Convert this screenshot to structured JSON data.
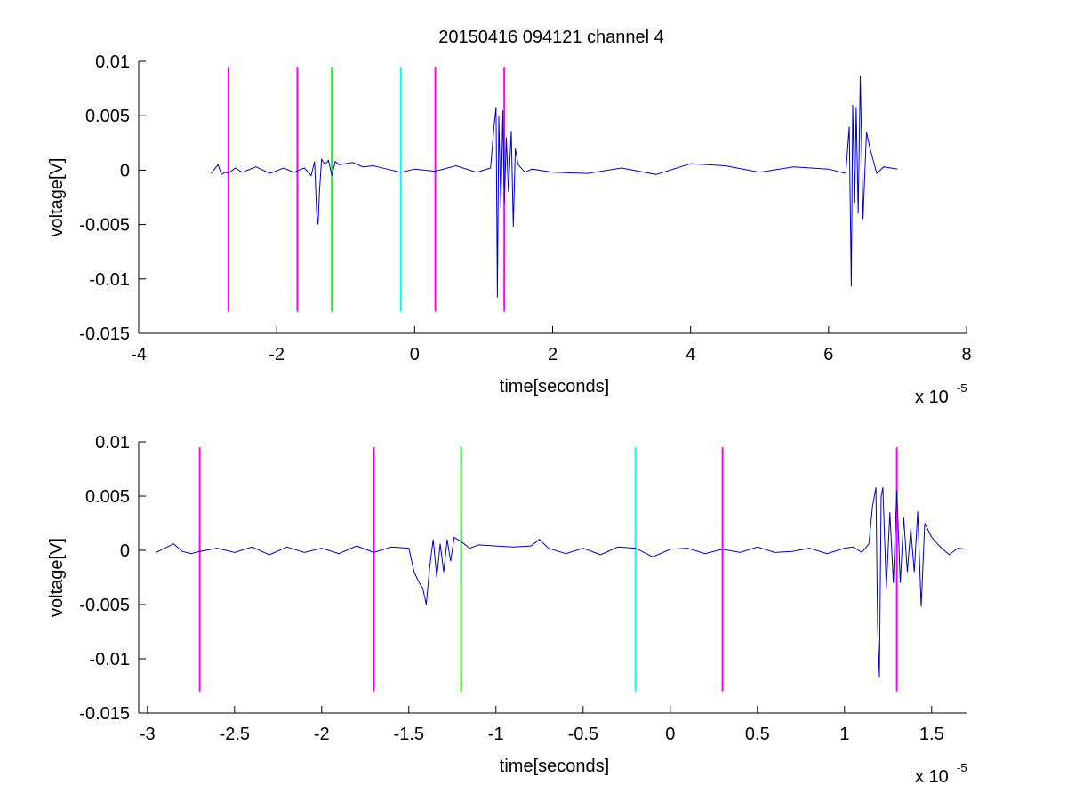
{
  "figure": {
    "title": "20150416 094121 channel 4"
  },
  "chart_data": [
    {
      "type": "line",
      "name": "full-view",
      "title": "20150416 094121 channel 4",
      "xlabel": "time[seconds]",
      "ylabel": "voltage[V]",
      "x_multiplier_text": "x 10",
      "x_multiplier_exp": "-5",
      "xlim": [
        -4,
        8
      ],
      "ylim": [
        -0.015,
        0.01
      ],
      "xticks": [
        -4,
        -2,
        0,
        2,
        4,
        6,
        8
      ],
      "xtick_labels": [
        "-4",
        "-2",
        "0",
        "2",
        "4",
        "6",
        "8"
      ],
      "yticks": [
        -0.015,
        -0.01,
        -0.005,
        0,
        0.005,
        0.01
      ],
      "ytick_labels": [
        "-0.015",
        "-0.01",
        "-0.005",
        "0",
        "0.005",
        "0.01"
      ],
      "grid": false,
      "vlines": [
        {
          "x": -2.7,
          "color": "#ff00ff",
          "y0": -0.013,
          "y1": 0.0095
        },
        {
          "x": -1.7,
          "color": "#ff00ff",
          "y0": -0.013,
          "y1": 0.0095
        },
        {
          "x": -1.2,
          "color": "#00ff00",
          "y0": -0.013,
          "y1": 0.0095
        },
        {
          "x": -0.2,
          "color": "#00ffff",
          "y0": -0.013,
          "y1": 0.0095
        },
        {
          "x": 0.3,
          "color": "#ff00ff",
          "y0": -0.013,
          "y1": 0.0095
        },
        {
          "x": 1.3,
          "color": "#ff00ff",
          "y0": -0.013,
          "y1": 0.0095
        }
      ],
      "series": [
        {
          "color": "#0000c8",
          "x": [
            -2.95,
            -2.85,
            -2.8,
            -2.75,
            -2.7,
            -2.6,
            -2.5,
            -2.3,
            -2.1,
            -1.9,
            -1.75,
            -1.6,
            -1.5,
            -1.45,
            -1.42,
            -1.4,
            -1.38,
            -1.35,
            -1.3,
            -1.25,
            -1.2,
            -1.15,
            -1.1,
            -1.0,
            -0.9,
            -0.75,
            -0.6,
            -0.4,
            -0.2,
            0.0,
            0.3,
            0.6,
            0.9,
            1.1,
            1.15,
            1.18,
            1.2,
            1.22,
            1.25,
            1.28,
            1.3,
            1.33,
            1.36,
            1.4,
            1.43,
            1.46,
            1.5,
            1.6,
            1.7,
            2.0,
            2.5,
            3.0,
            3.5,
            4.0,
            4.5,
            5.0,
            5.5,
            6.0,
            6.25,
            6.3,
            6.33,
            6.35,
            6.38,
            6.4,
            6.43,
            6.46,
            6.5,
            6.55,
            6.6,
            6.7,
            6.8,
            7.0
          ],
          "y": [
            -0.0003,
            0.0005,
            -0.0004,
            -0.0002,
            -0.0003,
            0.0002,
            -0.0002,
            0.0003,
            -0.0003,
            0.0002,
            -0.0002,
            0.0002,
            -0.0005,
            0.0008,
            -0.004,
            -0.005,
            -0.002,
            0.001,
            0.0005,
            0.0009,
            -0.0005,
            0.0008,
            0.0005,
            0.0006,
            0.0007,
            0.0003,
            0.0004,
            0.0001,
            -0.0002,
            0.0001,
            -0.0001,
            0.0004,
            -0.0002,
            0.0002,
            0.004,
            0.0058,
            -0.0117,
            0.005,
            -0.0035,
            0.0055,
            -0.003,
            0.003,
            -0.002,
            0.0036,
            -0.0052,
            0.002,
            0.0005,
            -0.0002,
            0.0001,
            -0.0002,
            -0.0003,
            0.0002,
            -0.0004,
            0.0006,
            0.0004,
            -0.0002,
            0.0003,
            0.0001,
            -0.0003,
            0.004,
            -0.0107,
            0.006,
            -0.003,
            0.0058,
            -0.004,
            0.0087,
            -0.0045,
            0.0035,
            0.002,
            -0.0003,
            0.0003,
            0.0001
          ]
        }
      ]
    },
    {
      "type": "line",
      "name": "zoomed-view",
      "title": "",
      "xlabel": "time[seconds]",
      "ylabel": "voltage[V]",
      "x_multiplier_text": "x 10",
      "x_multiplier_exp": "-5",
      "xlim": [
        -3.05,
        1.7
      ],
      "ylim": [
        -0.015,
        0.01
      ],
      "xticks": [
        -3,
        -2.5,
        -2,
        -1.5,
        -1,
        -0.5,
        0,
        0.5,
        1,
        1.5
      ],
      "xtick_labels": [
        "-3",
        "-2.5",
        "-2",
        "-1.5",
        "-1",
        "-0.5",
        "0",
        "0.5",
        "1",
        "1.5"
      ],
      "yticks": [
        -0.015,
        -0.01,
        -0.005,
        0,
        0.005,
        0.01
      ],
      "ytick_labels": [
        "-0.015",
        "-0.01",
        "-0.005",
        "0",
        "0.005",
        "0.01"
      ],
      "grid": false,
      "vlines": [
        {
          "x": -2.7,
          "color": "#ff00ff",
          "y0": -0.013,
          "y1": 0.0095
        },
        {
          "x": -1.7,
          "color": "#ff00ff",
          "y0": -0.013,
          "y1": 0.0095
        },
        {
          "x": -1.2,
          "color": "#00ff00",
          "y0": -0.013,
          "y1": 0.0095
        },
        {
          "x": -0.2,
          "color": "#00ffff",
          "y0": -0.013,
          "y1": 0.0095
        },
        {
          "x": 0.3,
          "color": "#ff00ff",
          "y0": -0.013,
          "y1": 0.0095
        },
        {
          "x": 1.3,
          "color": "#ff00ff",
          "y0": -0.013,
          "y1": 0.0095
        }
      ],
      "series": [
        {
          "color": "#0000c8",
          "x": [
            -2.95,
            -2.9,
            -2.85,
            -2.8,
            -2.75,
            -2.7,
            -2.6,
            -2.5,
            -2.4,
            -2.3,
            -2.2,
            -2.1,
            -2.0,
            -1.9,
            -1.8,
            -1.7,
            -1.6,
            -1.5,
            -1.47,
            -1.44,
            -1.42,
            -1.4,
            -1.38,
            -1.36,
            -1.34,
            -1.32,
            -1.3,
            -1.28,
            -1.26,
            -1.24,
            -1.2,
            -1.15,
            -1.1,
            -1.0,
            -0.9,
            -0.8,
            -0.75,
            -0.7,
            -0.6,
            -0.5,
            -0.4,
            -0.3,
            -0.2,
            -0.1,
            0.0,
            0.1,
            0.2,
            0.3,
            0.4,
            0.5,
            0.6,
            0.7,
            0.8,
            0.9,
            1.0,
            1.05,
            1.1,
            1.14,
            1.16,
            1.18,
            1.19,
            1.2,
            1.21,
            1.22,
            1.24,
            1.26,
            1.28,
            1.3,
            1.32,
            1.34,
            1.36,
            1.38,
            1.4,
            1.42,
            1.44,
            1.46,
            1.5,
            1.55,
            1.6,
            1.65,
            1.7
          ],
          "y": [
            -0.0002,
            0.0002,
            0.0006,
            -0.0001,
            -0.0003,
            -0.0001,
            0.0002,
            -0.0002,
            0.0003,
            -0.0004,
            0.0003,
            -0.0002,
            0.0002,
            -0.0003,
            0.0004,
            -0.0002,
            0.0003,
            0.0002,
            -0.002,
            -0.003,
            -0.0035,
            -0.005,
            -0.0015,
            0.001,
            -0.0025,
            0.0006,
            -0.002,
            0.001,
            -0.001,
            0.0012,
            0.0008,
            0.0002,
            0.0005,
            0.0004,
            0.0003,
            0.0004,
            0.001,
            0.0002,
            -0.0003,
            0.0002,
            -0.0004,
            0.0003,
            0.0002,
            -0.0006,
            0.0001,
            0.0002,
            -0.0003,
            0.0001,
            -0.0002,
            0.0003,
            -0.0002,
            -0.0001,
            0.0002,
            -0.0003,
            0.0002,
            0.0003,
            -0.0002,
            0.0006,
            0.004,
            0.0058,
            -0.007,
            -0.0117,
            0.005,
            0.0058,
            -0.0035,
            0.0035,
            -0.003,
            0.0055,
            -0.003,
            0.003,
            -0.002,
            0.002,
            -0.002,
            0.0036,
            -0.0052,
            0.0025,
            0.0012,
            0.0003,
            -0.0004,
            0.0002,
            0.0001
          ]
        }
      ]
    }
  ]
}
